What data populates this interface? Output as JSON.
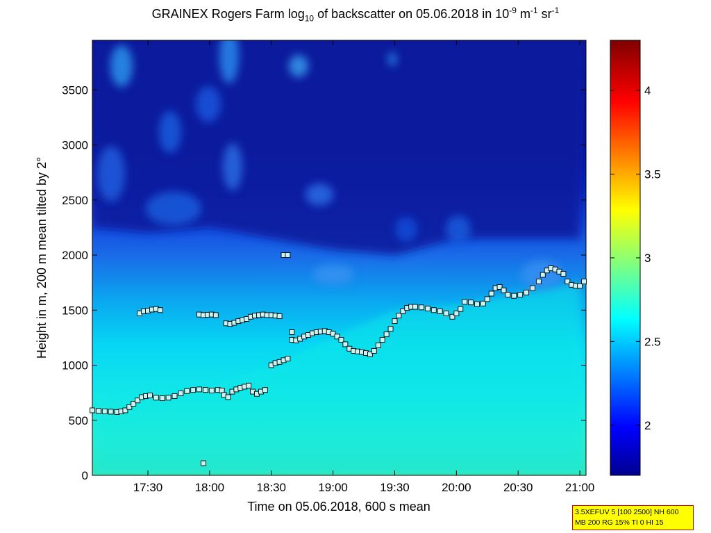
{
  "title": {
    "p1": "GRAINEX Rogers Farm log",
    "sub": "10",
    "p2": " of backscatter on 05.06.2018 in 10",
    "sup1": "-9",
    "p3": " m",
    "sup2": "-1",
    "p4": " sr",
    "sup3": "-1"
  },
  "info_box": {
    "line1": "3.5XEFUV 5 [100 2500] NH 600",
    "line2": "MB 200 RG 15% TI 0 HI 15"
  },
  "chart_data": {
    "type": "heatmap",
    "xlabel": "Time on 05.06.2018, 600 s mean",
    "ylabel": "Height in m, 200 m mean tilted by 2°",
    "xlim": [
      "17:03",
      "21:03"
    ],
    "ylim": [
      0,
      3950
    ],
    "x_ticks": [
      "17:30",
      "18:00",
      "18:30",
      "19:00",
      "19:30",
      "20:00",
      "20:30",
      "21:00"
    ],
    "y_ticks": [
      0,
      500,
      1000,
      1500,
      2000,
      2500,
      3000,
      3500
    ],
    "colorbar": {
      "min": 1.7,
      "max": 4.3,
      "ticks": [
        2,
        2.5,
        3,
        3.5,
        4
      ],
      "colormap": "jet"
    },
    "layer_top_height": [
      [
        "17:03",
        2250
      ],
      [
        "17:30",
        2200
      ],
      [
        "18:00",
        2250
      ],
      [
        "18:30",
        2150
      ],
      [
        "19:00",
        2050
      ],
      [
        "19:30",
        2000
      ],
      [
        "20:00",
        2150
      ],
      [
        "20:30",
        2150
      ],
      [
        "21:00",
        2150
      ]
    ],
    "mixed_layer_top": [
      [
        "17:03",
        600
      ],
      [
        "17:30",
        750
      ],
      [
        "18:00",
        800
      ],
      [
        "18:30",
        1000
      ],
      [
        "19:00",
        1250
      ],
      [
        "19:30",
        1500
      ],
      [
        "20:00",
        1550
      ],
      [
        "20:30",
        1650
      ],
      [
        "21:00",
        1750
      ]
    ],
    "mixed_layer_top_label_unit": "m",
    "series": [
      {
        "values": [
          [
            "17:03",
            590
          ],
          [
            "17:06",
            585
          ],
          [
            "17:09",
            580
          ],
          [
            "17:12",
            578
          ],
          [
            "17:15",
            575
          ],
          [
            "17:17",
            580
          ],
          [
            "17:19",
            590
          ],
          [
            "17:21",
            620
          ],
          [
            "17:23",
            650
          ],
          [
            "17:25",
            680
          ],
          [
            "17:27",
            710
          ],
          [
            "17:29",
            720
          ],
          [
            "17:31",
            725
          ],
          [
            "17:34",
            705
          ],
          [
            "17:37",
            700
          ],
          [
            "17:40",
            705
          ],
          [
            "17:43",
            720
          ],
          [
            "17:46",
            745
          ],
          [
            "17:49",
            765
          ],
          [
            "17:52",
            775
          ],
          [
            "17:55",
            780
          ],
          [
            "17:58",
            775
          ],
          [
            "18:01",
            770
          ],
          [
            "18:04",
            775
          ],
          [
            "18:06",
            770
          ],
          [
            "18:07",
            730
          ],
          [
            "18:09",
            710
          ],
          [
            "18:11",
            760
          ],
          [
            "18:13",
            780
          ],
          [
            "18:15",
            795
          ],
          [
            "18:17",
            805
          ],
          [
            "18:19",
            815
          ],
          [
            "18:21",
            760
          ],
          [
            "18:23",
            740
          ],
          [
            "18:25",
            760
          ],
          [
            "18:27",
            775
          ]
        ]
      },
      {
        "values": [
          [
            "18:30",
            1000
          ],
          [
            "18:32",
            1020
          ],
          [
            "18:34",
            1030
          ],
          [
            "18:36",
            1045
          ],
          [
            "18:38",
            1060
          ],
          [
            "18:40",
            1300
          ],
          [
            "18:40",
            1230
          ],
          [
            "18:42",
            1225
          ],
          [
            "18:44",
            1240
          ],
          [
            "18:46",
            1260
          ],
          [
            "18:48",
            1275
          ],
          [
            "18:50",
            1290
          ],
          [
            "18:52",
            1300
          ],
          [
            "18:54",
            1305
          ],
          [
            "18:56",
            1310
          ],
          [
            "18:58",
            1300
          ],
          [
            "19:00",
            1285
          ],
          [
            "19:02",
            1260
          ],
          [
            "19:04",
            1230
          ],
          [
            "19:06",
            1190
          ],
          [
            "19:08",
            1150
          ],
          [
            "19:10",
            1130
          ],
          [
            "19:12",
            1125
          ],
          [
            "19:14",
            1120
          ],
          [
            "19:16",
            1110
          ],
          [
            "19:18",
            1100
          ],
          [
            "19:20",
            1130
          ],
          [
            "19:22",
            1180
          ],
          [
            "19:24",
            1230
          ],
          [
            "19:26",
            1280
          ],
          [
            "19:28",
            1330
          ],
          [
            "19:30",
            1400
          ],
          [
            "19:32",
            1450
          ],
          [
            "19:34",
            1490
          ],
          [
            "19:36",
            1520
          ],
          [
            "19:38",
            1530
          ],
          [
            "19:40",
            1530
          ],
          [
            "19:43",
            1525
          ],
          [
            "19:46",
            1515
          ],
          [
            "19:49",
            1500
          ],
          [
            "19:52",
            1490
          ],
          [
            "19:55",
            1470
          ],
          [
            "19:58",
            1440
          ],
          [
            "20:00",
            1470
          ],
          [
            "20:02",
            1510
          ],
          [
            "20:04",
            1575
          ],
          [
            "20:07",
            1570
          ],
          [
            "20:10",
            1555
          ],
          [
            "20:13",
            1560
          ],
          [
            "20:15",
            1600
          ],
          [
            "20:17",
            1650
          ],
          [
            "20:19",
            1700
          ],
          [
            "20:21",
            1710
          ],
          [
            "20:23",
            1680
          ],
          [
            "20:25",
            1640
          ],
          [
            "20:28",
            1630
          ],
          [
            "20:31",
            1640
          ],
          [
            "20:34",
            1660
          ],
          [
            "20:37",
            1700
          ],
          [
            "20:40",
            1760
          ],
          [
            "20:42",
            1820
          ],
          [
            "20:44",
            1860
          ],
          [
            "20:46",
            1880
          ],
          [
            "20:48",
            1870
          ],
          [
            "20:50",
            1850
          ],
          [
            "20:52",
            1830
          ],
          [
            "20:54",
            1760
          ],
          [
            "20:56",
            1730
          ],
          [
            "20:58",
            1720
          ],
          [
            "21:00",
            1720
          ],
          [
            "21:02",
            1760
          ]
        ]
      },
      {
        "values": [
          [
            "17:26",
            1470
          ],
          [
            "17:28",
            1490
          ],
          [
            "17:30",
            1495
          ],
          [
            "17:32",
            1505
          ],
          [
            "17:34",
            1510
          ],
          [
            "17:36",
            1500
          ],
          [
            "17:55",
            1460
          ],
          [
            "17:57",
            1455
          ],
          [
            "17:59",
            1458
          ],
          [
            "18:01",
            1460
          ],
          [
            "18:03",
            1455
          ],
          [
            "18:08",
            1380
          ],
          [
            "18:10",
            1375
          ],
          [
            "18:12",
            1385
          ],
          [
            "18:14",
            1400
          ],
          [
            "18:16",
            1410
          ],
          [
            "18:18",
            1420
          ],
          [
            "18:20",
            1440
          ],
          [
            "18:22",
            1450
          ],
          [
            "18:24",
            1455
          ],
          [
            "18:26",
            1460
          ],
          [
            "18:28",
            1455
          ],
          [
            "18:30",
            1455
          ],
          [
            "18:32",
            1450
          ],
          [
            "18:34",
            1445
          ],
          [
            "18:36",
            2000
          ],
          [
            "18:38",
            2000
          ],
          [
            "17:57",
            110
          ]
        ]
      }
    ]
  }
}
